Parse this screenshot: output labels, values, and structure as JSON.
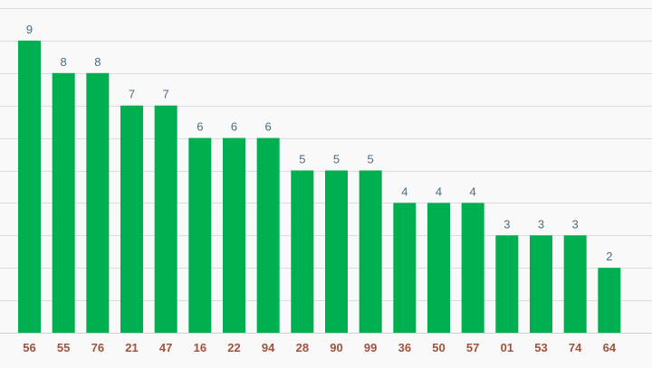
{
  "chart_data": {
    "type": "bar",
    "categories": [
      "56",
      "55",
      "76",
      "21",
      "47",
      "16",
      "22",
      "94",
      "28",
      "90",
      "99",
      "36",
      "50",
      "57",
      "01",
      "53",
      "74",
      "64"
    ],
    "values": [
      9,
      8,
      8,
      7,
      7,
      6,
      6,
      6,
      5,
      5,
      5,
      4,
      4,
      4,
      3,
      3,
      3,
      2
    ],
    "title": "",
    "xlabel": "",
    "ylabel": "",
    "ylim": [
      0,
      10
    ],
    "grid": true,
    "data_labels": true,
    "colors": {
      "bar": "#00b050",
      "value_label": "#4d6b80",
      "category_label": "#a0523c",
      "grid": "#dcdcdc",
      "background": "#f9f9f9"
    }
  }
}
